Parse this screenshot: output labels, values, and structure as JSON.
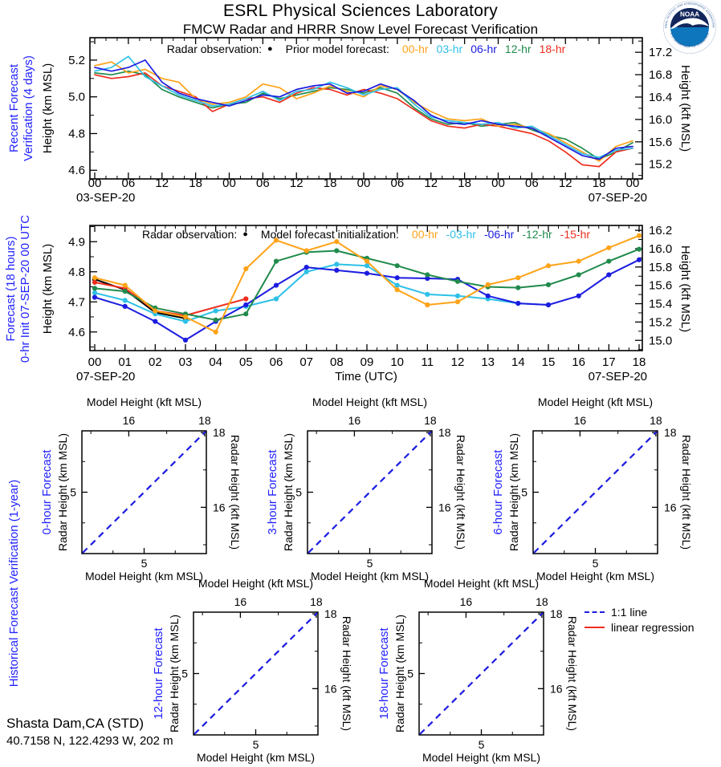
{
  "header": {
    "title": "ESRL Physical Sciences Laboratory",
    "subtitle": "FMCW Radar and HRRR Snow Level Forecast Verification"
  },
  "logo": {
    "agency": "NOAA",
    "ring_top": "NATIONAL OCEANIC AND ATMOSPHERIC ADMINISTRATION",
    "ring_bottom": "U.S. DEPARTMENT OF COMMERCE"
  },
  "station": {
    "name": "Shasta Dam,CA (STD)",
    "location": "40.7158 N, 122.4293 W, 202 m"
  },
  "colors": {
    "orange": "#ffa318",
    "cyan": "#2ec0e7",
    "blue": "#1c1ce0",
    "green": "#208a4c",
    "red": "#ee2e1f",
    "black": "#000000",
    "label_blue": "#2222ff"
  },
  "scatter_legend": {
    "line11": "1:1 line",
    "regression": "linear regression"
  },
  "chart_data": [
    {
      "id": "p1",
      "type": "line",
      "side_label": [
        "Recent Forecast",
        "Verification (4 days)"
      ],
      "legend": {
        "radar": "Radar observation:",
        "marker": "●",
        "model": "Prior model forecast:",
        "items": [
          {
            "label": "00-hr",
            "color_key": "orange"
          },
          {
            "label": "03-hr",
            "color_key": "cyan"
          },
          {
            "label": "06-hr",
            "color_key": "blue"
          },
          {
            "label": "12-hr",
            "color_key": "green"
          },
          {
            "label": "18-hr",
            "color_key": "red"
          }
        ]
      },
      "ylabel_left": "Height (km MSL)",
      "ylabel_right": "Height (kft MSL)",
      "ylim": [
        4.553,
        5.322
      ],
      "yticks_left_vals": [
        5.2,
        5.0,
        4.8,
        4.6
      ],
      "yticks_left_labels": [
        "5.2",
        "5.0",
        "4.8",
        "4.6"
      ],
      "y_minor_step_left": 0.1,
      "yticks_right_vals": [
        17.2,
        16.8,
        16.4,
        16.0,
        15.6,
        15.2
      ],
      "yticks_right_labels": [
        "17.2",
        "16.8",
        "16.4",
        "16.0",
        "15.6",
        "15.2"
      ],
      "y_minor_step_right": 0.2,
      "x_range": [
        0,
        96
      ],
      "xtick_hours": [
        0,
        6,
        12,
        18,
        24,
        30,
        36,
        42,
        48,
        54,
        60,
        66,
        72,
        78,
        84,
        90,
        96
      ],
      "xtick_labels": [
        "00",
        "06",
        "12",
        "18",
        "00",
        "06",
        "12",
        "18",
        "00",
        "06",
        "12",
        "18",
        "00",
        "06",
        "12",
        "18",
        "00"
      ],
      "x_minor_step": 2,
      "date_left": "03-SEP-20",
      "date_right": "07-SEP-20",
      "markers": false,
      "hours": [
        0,
        3,
        6,
        9,
        12,
        15,
        18,
        21,
        24,
        27,
        30,
        33,
        36,
        39,
        42,
        45,
        48,
        51,
        54,
        57,
        60,
        63,
        66,
        69,
        72,
        75,
        78,
        81,
        84,
        87,
        90,
        93,
        96
      ],
      "series": [
        {
          "name": "12-hr",
          "color_key": "green",
          "km": [
            5.13,
            5.12,
            5.14,
            5.12,
            5.04,
            5.0,
            4.97,
            4.94,
            4.96,
            4.97,
            5.02,
            4.99,
            5.01,
            5.03,
            5.05,
            5.04,
            5.02,
            5.05,
            5.02,
            4.94,
            4.88,
            4.85,
            4.86,
            4.84,
            4.85,
            4.86,
            4.82,
            4.79,
            4.77,
            4.72,
            4.66,
            4.7,
            4.75
          ]
        },
        {
          "name": "18-hr",
          "color_key": "red",
          "km": [
            5.12,
            5.1,
            5.11,
            5.13,
            5.06,
            5.03,
            5.0,
            4.92,
            4.96,
            4.99,
            5.0,
            4.97,
            5.02,
            5.05,
            5.04,
            5.01,
            5.04,
            5.02,
            4.99,
            4.93,
            4.87,
            4.84,
            4.83,
            4.85,
            4.84,
            4.82,
            4.8,
            4.76,
            4.7,
            4.63,
            4.62,
            4.7,
            4.72
          ]
        },
        {
          "name": "00-hr",
          "color_key": "orange",
          "km": [
            5.17,
            5.19,
            5.13,
            5.15,
            5.1,
            5.08,
            4.99,
            4.96,
            4.97,
            5.0,
            5.07,
            5.05,
            4.99,
            5.02,
            5.06,
            5.03,
            5.0,
            5.06,
            5.04,
            4.97,
            4.92,
            4.88,
            4.87,
            4.88,
            4.84,
            4.85,
            4.83,
            4.8,
            4.75,
            4.7,
            4.65,
            4.73,
            4.76
          ]
        },
        {
          "name": "03-hr",
          "color_key": "cyan",
          "km": [
            5.14,
            5.16,
            5.22,
            5.11,
            5.06,
            5.01,
            4.98,
            4.95,
            4.96,
            4.99,
            5.03,
            4.98,
            5.03,
            5.04,
            5.08,
            5.05,
            5.01,
            5.04,
            5.05,
            4.96,
            4.89,
            4.87,
            4.86,
            4.85,
            4.86,
            4.83,
            4.84,
            4.79,
            4.74,
            4.69,
            4.67,
            4.71,
            4.72
          ]
        },
        {
          "name": "06-hr",
          "color_key": "blue",
          "km": [
            5.16,
            5.14,
            5.16,
            5.2,
            5.08,
            5.02,
            4.99,
            4.97,
            4.95,
            4.98,
            5.01,
            5.0,
            5.04,
            5.06,
            5.07,
            5.02,
            5.03,
            5.07,
            5.04,
            4.98,
            4.9,
            4.86,
            4.85,
            4.87,
            4.85,
            4.84,
            4.83,
            4.78,
            4.73,
            4.68,
            4.66,
            4.72,
            4.73
          ]
        }
      ]
    },
    {
      "id": "p2",
      "type": "line",
      "side_label": [
        "Forecast (18 hours)",
        "0-hr Init 07-SEP-20 00 UTC"
      ],
      "legend": {
        "radar": "Radar observation:",
        "marker": "●",
        "model": "Model forecast initialization:",
        "items": [
          {
            "label": "00-hr",
            "color_key": "orange"
          },
          {
            "label": "-03-hr",
            "color_key": "cyan"
          },
          {
            "label": "-06-hr",
            "color_key": "blue"
          },
          {
            "label": "-12-hr",
            "color_key": "green"
          },
          {
            "label": "-15-hr",
            "color_key": "red"
          }
        ]
      },
      "ylabel_left": "Height (km MSL)",
      "ylabel_right": "Height (kft MSL)",
      "xlabel": "Time (UTC)",
      "ylim": [
        4.538,
        4.954
      ],
      "yticks_left_vals": [
        4.9,
        4.8,
        4.7,
        4.6
      ],
      "yticks_left_labels": [
        "4.9",
        "4.8",
        "4.7",
        "4.6"
      ],
      "y_minor_step_left": 0.05,
      "yticks_right_vals": [
        16.2,
        16.0,
        15.8,
        15.6,
        15.4,
        15.2,
        15.0
      ],
      "yticks_right_labels": [
        "16.2",
        "16.0",
        "15.8",
        "15.6",
        "15.4",
        "15.2",
        "15.0"
      ],
      "y_minor_step_right": 0.1,
      "x_range": [
        0,
        18
      ],
      "xtick_hours": [
        0,
        1,
        2,
        3,
        4,
        5,
        6,
        7,
        8,
        9,
        10,
        11,
        12,
        13,
        14,
        15,
        16,
        17,
        18
      ],
      "xtick_labels": [
        "00",
        "01",
        "02",
        "03",
        "04",
        "05",
        "06",
        "07",
        "08",
        "09",
        "10",
        "11",
        "12",
        "13",
        "14",
        "15",
        "16",
        "17",
        "18"
      ],
      "x_minor_step": 0.3333,
      "date_left": "07-SEP-20",
      "date_right": "07-SEP-20",
      "markers": true,
      "hours": [
        0,
        1,
        2,
        3,
        4,
        5,
        6,
        7,
        8,
        9,
        10,
        11,
        12,
        13,
        14,
        15,
        16,
        17,
        18
      ],
      "series": [
        {
          "name": "radar-observation",
          "color_key": "black",
          "hours": [
            0,
            1,
            2,
            3
          ],
          "km": [
            4.775,
            4.74,
            4.665,
            4.645
          ]
        },
        {
          "name": "-15-hr",
          "color_key": "red",
          "hours": [
            0,
            1,
            2,
            3,
            5
          ],
          "km": [
            4.765,
            4.745,
            4.67,
            4.655,
            4.71
          ]
        },
        {
          "name": "-03-hr",
          "color_key": "cyan",
          "hours": [
            0,
            1,
            2,
            3,
            4,
            5,
            6,
            7,
            8,
            9,
            10,
            11,
            12,
            13,
            14,
            15
          ],
          "km": [
            4.73,
            4.705,
            4.66,
            4.635,
            4.67,
            4.685,
            4.71,
            4.8,
            4.825,
            4.82,
            4.755,
            4.725,
            4.72,
            4.71,
            4.695,
            4.69
          ]
        },
        {
          "name": "-06-hr",
          "color_key": "blue",
          "km": [
            4.715,
            4.685,
            4.635,
            4.573,
            4.635,
            4.69,
            4.755,
            4.815,
            4.805,
            4.795,
            4.78,
            4.778,
            4.775,
            4.72,
            4.695,
            4.69,
            4.72,
            4.79,
            4.84
          ]
        },
        {
          "name": "-12-hr",
          "color_key": "green",
          "km": [
            4.745,
            4.735,
            4.68,
            4.66,
            4.64,
            4.66,
            4.835,
            4.865,
            4.87,
            4.845,
            4.82,
            4.79,
            4.768,
            4.75,
            4.747,
            4.757,
            4.79,
            4.835,
            4.875
          ]
        },
        {
          "name": "00-hr",
          "color_key": "orange",
          "km": [
            4.78,
            4.755,
            4.67,
            4.65,
            4.6,
            4.81,
            4.905,
            4.87,
            4.9,
            4.835,
            4.74,
            4.69,
            4.7,
            4.757,
            4.78,
            4.82,
            4.835,
            4.88,
            4.92
          ]
        }
      ]
    },
    {
      "id": "historical",
      "type": "scatter",
      "side_label": "Historical Forecast Verification (1-year)",
      "panels": [
        {
          "label": "0-hour Forecast"
        },
        {
          "label": "3-hour Forecast"
        },
        {
          "label": "6-hour Forecast"
        },
        {
          "label": "12-hour Forecast"
        },
        {
          "label": "18-hour Forecast"
        }
      ],
      "axes": {
        "top_label": "Model Height (kft MSL)",
        "bottom_label": "Model Height (km MSL)",
        "left_label": "Radar Height (km MSL)",
        "right_label": "Radar Height (kft MSL)",
        "km_range": [
          4.5,
          5.5
        ],
        "km_major": [
          5
        ],
        "km_major_labels": [
          "5"
        ],
        "km_minor": [
          4.75,
          5.25
        ],
        "kft_major": [
          16,
          18
        ],
        "kft_major_labels": [
          "16",
          "18"
        ],
        "kft_minor": [
          15,
          17
        ]
      },
      "reference": {
        "one_to_one": {
          "label": "1:1 line",
          "style": "dashed",
          "color_key": "blue"
        },
        "regression": {
          "label": "linear regression",
          "style": "solid",
          "color_key": "red"
        }
      },
      "points": []
    }
  ]
}
